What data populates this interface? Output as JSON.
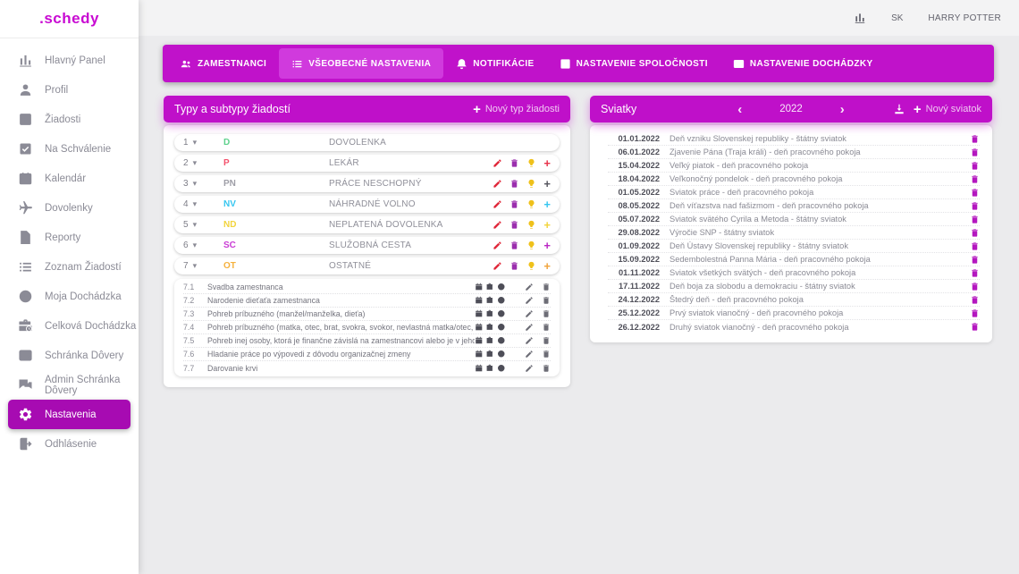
{
  "app": {
    "logo": ".schedy"
  },
  "header": {
    "stats_icon": "chart-icon",
    "language": "SK",
    "user": "HARRY POTTER"
  },
  "sidebar": {
    "items": [
      {
        "label": "Hlavný Panel",
        "icon": "chart-icon",
        "active": false
      },
      {
        "label": "Profil",
        "icon": "person-icon",
        "active": false
      },
      {
        "label": "Žiadosti",
        "icon": "plus-square-icon",
        "active": false
      },
      {
        "label": "Na Schválenie",
        "icon": "check-square-icon",
        "active": false
      },
      {
        "label": "Kalendár",
        "icon": "calendar-icon",
        "active": false
      },
      {
        "label": "Dovolenky",
        "icon": "plane-icon",
        "active": false
      },
      {
        "label": "Reporty",
        "icon": "document-icon",
        "active": false
      },
      {
        "label": "Zoznam Žiadostí",
        "icon": "list-icon",
        "active": false
      },
      {
        "label": "Moja Dochádzka",
        "icon": "clock-icon",
        "active": false
      },
      {
        "label": "Celková Dochádzka",
        "icon": "briefcase-clock-icon",
        "active": false
      },
      {
        "label": "Schránka Dôvery",
        "icon": "inbox-icon",
        "active": false
      },
      {
        "label": "Admin Schránka Dôvery",
        "icon": "chat-icon",
        "active": false
      },
      {
        "label": "Nastavenia",
        "icon": "gear-icon",
        "active": true
      },
      {
        "label": "Odhlásenie",
        "icon": "logout-icon",
        "active": false
      }
    ]
  },
  "tabs": [
    {
      "label": "ZAMESTNANCI",
      "icon": "people-icon",
      "active": false
    },
    {
      "label": "VŠEOBECNÉ NASTAVENIA",
      "icon": "list-icon",
      "active": true
    },
    {
      "label": "NOTIFIKÁCIE",
      "icon": "bell-icon",
      "active": false
    },
    {
      "label": "NASTAVENIE SPOLOČNOSTI",
      "icon": "company-icon",
      "active": false
    },
    {
      "label": "NASTAVENIE DOCHÁDZKY",
      "icon": "attendance-icon",
      "active": false
    }
  ],
  "panels": {
    "types": {
      "title": "Typy a subtypy žiadostí",
      "new_button": "Nový typ žiadosti",
      "rows": [
        {
          "num": "1",
          "code": "D",
          "code_color": "#5ed18c",
          "name": "DOVOLENKA",
          "actions": false,
          "plus_color": ""
        },
        {
          "num": "2",
          "code": "P",
          "code_color": "#f4516c",
          "name": "LEKÁR",
          "actions": true,
          "plus_color": "#e8324a"
        },
        {
          "num": "3",
          "code": "PN",
          "code_color": "#9e9ea7",
          "name": "PRÁCE NESCHOPNÝ",
          "actions": true,
          "plus_color": "#55555e"
        },
        {
          "num": "4",
          "code": "NV",
          "code_color": "#36c6f0",
          "name": "NÁHRADNÉ VOLNO",
          "actions": true,
          "plus_color": "#36c6f0"
        },
        {
          "num": "5",
          "code": "ND",
          "code_color": "#f2d43d",
          "name": "NEPLATENÁ DOVOLENKA",
          "actions": true,
          "plus_color": "#f2d43d"
        },
        {
          "num": "6",
          "code": "SC",
          "code_color": "#c93bd4",
          "name": "SLUŽOBNÁ CESTA",
          "actions": true,
          "plus_color": "#bb28c4"
        },
        {
          "num": "7",
          "code": "OT",
          "code_color": "#f5b13d",
          "name": "OSTATNÉ",
          "actions": true,
          "plus_color": "#f0a43c"
        }
      ],
      "action_icons": {
        "edit_color": "#e0283a",
        "delete_color": "#9b2fae",
        "bulb_color": "#efc11a"
      },
      "subtypes": [
        {
          "num": "7.1",
          "name": "Svadba zamestnanca"
        },
        {
          "num": "7.2",
          "name": "Narodenie dieťaťa zamestnanca"
        },
        {
          "num": "7.3",
          "name": "Pohreb príbuzného (manžel/manželka, dieťa)"
        },
        {
          "num": "7.4",
          "name": "Pohreb príbuzného (matka, otec, brat, svokra, svokor, nevlastná matka/otec, dedo, babka)"
        },
        {
          "num": "7.5",
          "name": "Pohreb inej osoby, ktorá je finančne závislá na zamestnancovi alebo je v jeho starostlivosti"
        },
        {
          "num": "7.6",
          "name": "Hladanie práce po výpovedi z dôvodu organizačnej zmeny"
        },
        {
          "num": "7.7",
          "name": "Darovanie krvi"
        }
      ]
    },
    "holidays": {
      "title": "Sviatky",
      "year": "2022",
      "new_button": "Nový sviatok",
      "trash_color": "#b416bf",
      "rows": [
        {
          "date": "01.01.2022",
          "name": "Deň vzniku Slovenskej republiky - štátny sviatok"
        },
        {
          "date": "06.01.2022",
          "name": "Zjavenie Pána (Traja králi) - deň pracovného pokoja"
        },
        {
          "date": "15.04.2022",
          "name": "Veľký piatok - deň pracovného pokoja"
        },
        {
          "date": "18.04.2022",
          "name": "Veľkonočný pondelok - deň pracovného pokoja"
        },
        {
          "date": "01.05.2022",
          "name": "Sviatok práce - deň pracovného pokoja"
        },
        {
          "date": "08.05.2022",
          "name": "Deň víťazstva nad fašizmom - deň pracovného pokoja"
        },
        {
          "date": "05.07.2022",
          "name": "Sviatok svätého Cyrila a Metoda - štátny sviatok"
        },
        {
          "date": "29.08.2022",
          "name": "Výročie SNP - štátny sviatok"
        },
        {
          "date": "01.09.2022",
          "name": "Deň Ústavy Slovenskej republiky - štátny sviatok"
        },
        {
          "date": "15.09.2022",
          "name": "Sedembolestná Panna Mária - deň pracovného pokoja"
        },
        {
          "date": "01.11.2022",
          "name": "Sviatok všetkých svätých - deň pracovného pokoja"
        },
        {
          "date": "17.11.2022",
          "name": "Deň boja za slobodu a demokraciu - štátny sviatok"
        },
        {
          "date": "24.12.2022",
          "name": "Štedrý deň - deň pracovného pokoja"
        },
        {
          "date": "25.12.2022",
          "name": "Prvý sviatok vianočný - deň pracovného pokoja"
        },
        {
          "date": "26.12.2022",
          "name": "Druhý sviatok vianočný - deň pracovného pokoja"
        }
      ]
    }
  }
}
